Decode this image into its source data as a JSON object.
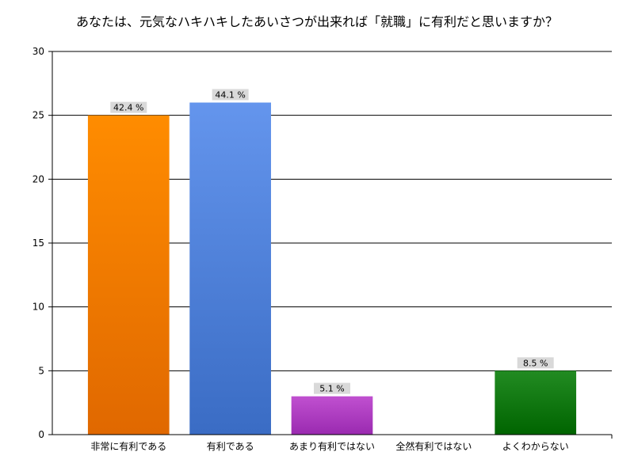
{
  "chart_data": {
    "type": "bar",
    "title": "あなたは、元気なハキハキしたあいさつが出来れば「就職」に有利だと思いますか？",
    "xlabel": "",
    "ylabel": "",
    "categories": [
      "非常に有利である",
      "有利である",
      "あまり有利ではない",
      "全然有利ではない",
      "よくわからない"
    ],
    "values": [
      25,
      26,
      3,
      0,
      5
    ],
    "data_labels": [
      "42.4 %",
      "44.1 %",
      "5.1 %",
      "",
      "8.5 %"
    ],
    "colors_top": [
      "#ff8c00",
      "#6495ed",
      "#c050d0",
      "#ffffff",
      "#228b22"
    ],
    "colors_bottom": [
      "#e06800",
      "#3a6cc4",
      "#9a2ab0",
      "#ffffff",
      "#006400"
    ],
    "ylim": [
      0,
      30
    ],
    "yticks": [
      0,
      5,
      10,
      15,
      20,
      25,
      30
    ],
    "grid": true,
    "legend": "none"
  }
}
